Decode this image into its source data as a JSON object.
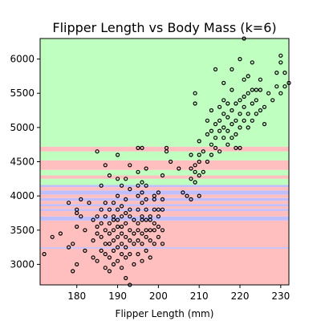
{
  "chart_data": {
    "type": "scatter",
    "title": "Flipper Length vs Body Mass (k=6)",
    "xlabel": "Flipper Length (mm)",
    "ylabel": "",
    "xlim": [
      171,
      232
    ],
    "ylim": [
      2700,
      6300
    ],
    "xticks": [
      180,
      190,
      200,
      210,
      220,
      230
    ],
    "yticks": [
      3000,
      3500,
      4000,
      4500,
      5000,
      5500,
      6000
    ],
    "grid": false,
    "legend": "none",
    "colors": {
      "region_pink": "#ffbfbf",
      "region_green": "#bfffbf",
      "region_blue": "#bfbfff",
      "point_stroke": "#000000",
      "point_fill": "none"
    },
    "regions": [
      {
        "y0": 2700,
        "y1": 3230,
        "class": "pink"
      },
      {
        "y0": 3230,
        "y1": 3250,
        "class": "blue"
      },
      {
        "y0": 3250,
        "y1": 3640,
        "class": "pink"
      },
      {
        "y0": 3640,
        "y1": 3700,
        "class": "blue"
      },
      {
        "y0": 3700,
        "y1": 3780,
        "class": "pink"
      },
      {
        "y0": 3780,
        "y1": 3810,
        "class": "blue"
      },
      {
        "y0": 3810,
        "y1": 3850,
        "class": "pink"
      },
      {
        "y0": 3850,
        "y1": 3880,
        "class": "blue"
      },
      {
        "y0": 3880,
        "y1": 3930,
        "class": "pink"
      },
      {
        "y0": 3930,
        "y1": 3970,
        "class": "blue"
      },
      {
        "y0": 3970,
        "y1": 4020,
        "class": "pink"
      },
      {
        "y0": 4020,
        "y1": 4080,
        "class": "blue"
      },
      {
        "y0": 4080,
        "y1": 4130,
        "class": "pink"
      },
      {
        "y0": 4130,
        "y1": 4160,
        "class": "blue"
      },
      {
        "y0": 4160,
        "y1": 4250,
        "class": "green"
      },
      {
        "y0": 4250,
        "y1": 4300,
        "class": "pink"
      },
      {
        "y0": 4300,
        "y1": 4380,
        "class": "green"
      },
      {
        "y0": 4380,
        "y1": 4520,
        "class": "pink"
      },
      {
        "y0": 4520,
        "y1": 4650,
        "class": "green"
      },
      {
        "y0": 4650,
        "y1": 4720,
        "class": "pink"
      },
      {
        "y0": 4720,
        "y1": 6300,
        "class": "green"
      }
    ],
    "points": [
      [
        172,
        3150
      ],
      [
        174,
        3400
      ],
      [
        176,
        3450
      ],
      [
        178,
        3250
      ],
      [
        178,
        3900
      ],
      [
        179,
        2900
      ],
      [
        179,
        3300
      ],
      [
        180,
        3000
      ],
      [
        180,
        3550
      ],
      [
        180,
        3750
      ],
      [
        180,
        3800
      ],
      [
        181,
        3700
      ],
      [
        181,
        3950
      ],
      [
        182,
        3200
      ],
      [
        182,
        3500
      ],
      [
        183,
        3900
      ],
      [
        184,
        3100
      ],
      [
        184,
        3350
      ],
      [
        184,
        3650
      ],
      [
        185,
        3050
      ],
      [
        185,
        3450
      ],
      [
        185,
        3550
      ],
      [
        185,
        3700
      ],
      [
        185,
        4650
      ],
      [
        186,
        3200
      ],
      [
        186,
        3400
      ],
      [
        186,
        3600
      ],
      [
        186,
        3800
      ],
      [
        186,
        4150
      ],
      [
        187,
        2950
      ],
      [
        187,
        3150
      ],
      [
        187,
        3300
      ],
      [
        187,
        3500
      ],
      [
        187,
        3700
      ],
      [
        187,
        3900
      ],
      [
        187,
        4450
      ],
      [
        188,
        2900
      ],
      [
        188,
        3100
      ],
      [
        188,
        3300
      ],
      [
        188,
        3450
      ],
      [
        188,
        3600
      ],
      [
        188,
        3800
      ],
      [
        188,
        4300
      ],
      [
        189,
        3000
      ],
      [
        189,
        3200
      ],
      [
        189,
        3350
      ],
      [
        189,
        3500
      ],
      [
        189,
        3650
      ],
      [
        189,
        3700
      ],
      [
        189,
        3900
      ],
      [
        190,
        3050
      ],
      [
        190,
        3250
      ],
      [
        190,
        3400
      ],
      [
        190,
        3550
      ],
      [
        190,
        3650
      ],
      [
        190,
        3800
      ],
      [
        190,
        4000
      ],
      [
        190,
        4250
      ],
      [
        190,
        4600
      ],
      [
        191,
        2950
      ],
      [
        191,
        3150
      ],
      [
        191,
        3300
      ],
      [
        191,
        3450
      ],
      [
        191,
        3550
      ],
      [
        191,
        3700
      ],
      [
        191,
        3850
      ],
      [
        191,
        4150
      ],
      [
        192,
        2800
      ],
      [
        192,
        3100
      ],
      [
        192,
        3250
      ],
      [
        192,
        3400
      ],
      [
        192,
        3600
      ],
      [
        192,
        3750
      ],
      [
        192,
        3950
      ],
      [
        192,
        4250
      ],
      [
        193,
        2700
      ],
      [
        193,
        3150
      ],
      [
        193,
        3350
      ],
      [
        193,
        3500
      ],
      [
        193,
        3700
      ],
      [
        193,
        3800
      ],
      [
        193,
        4100
      ],
      [
        193,
        4450
      ],
      [
        194,
        3000
      ],
      [
        194,
        3300
      ],
      [
        194,
        3450
      ],
      [
        194,
        3650
      ],
      [
        195,
        3150
      ],
      [
        195,
        3350
      ],
      [
        195,
        3500
      ],
      [
        195,
        3600
      ],
      [
        195,
        3800
      ],
      [
        195,
        4000
      ],
      [
        195,
        4150
      ],
      [
        195,
        4350
      ],
      [
        195,
        4700
      ],
      [
        196,
        3050
      ],
      [
        196,
        3300
      ],
      [
        196,
        3450
      ],
      [
        196,
        3650
      ],
      [
        196,
        3700
      ],
      [
        196,
        3900
      ],
      [
        196,
        4050
      ],
      [
        196,
        4200
      ],
      [
        196,
        4700
      ],
      [
        197,
        3200
      ],
      [
        197,
        3400
      ],
      [
        197,
        3500
      ],
      [
        197,
        3650
      ],
      [
        197,
        3800
      ],
      [
        197,
        3950
      ],
      [
        197,
        4150
      ],
      [
        197,
        4400
      ],
      [
        198,
        3100
      ],
      [
        198,
        3350
      ],
      [
        198,
        3500
      ],
      [
        198,
        3650
      ],
      [
        198,
        3700
      ],
      [
        199,
        3300
      ],
      [
        199,
        3500
      ],
      [
        199,
        3600
      ],
      [
        199,
        3800
      ],
      [
        199,
        3950
      ],
      [
        199,
        4000
      ],
      [
        200,
        3400
      ],
      [
        200,
        3550
      ],
      [
        200,
        3700
      ],
      [
        200,
        3800
      ],
      [
        200,
        4050
      ],
      [
        201,
        3300
      ],
      [
        201,
        3500
      ],
      [
        201,
        3800
      ],
      [
        201,
        3950
      ],
      [
        201,
        4300
      ],
      [
        202,
        4650
      ],
      [
        202,
        4700
      ],
      [
        203,
        4500
      ],
      [
        205,
        4400
      ],
      [
        206,
        4050
      ],
      [
        207,
        4000
      ],
      [
        208,
        3950
      ],
      [
        208,
        4250
      ],
      [
        208,
        4400
      ],
      [
        208,
        4600
      ],
      [
        209,
        4200
      ],
      [
        209,
        4350
      ],
      [
        209,
        4450
      ],
      [
        209,
        5350
      ],
      [
        209,
        5500
      ],
      [
        210,
        4000
      ],
      [
        210,
        4300
      ],
      [
        210,
        4500
      ],
      [
        210,
        4600
      ],
      [
        210,
        4800
      ],
      [
        211,
        4350
      ],
      [
        211,
        4650
      ],
      [
        212,
        4500
      ],
      [
        212,
        4900
      ],
      [
        212,
        5100
      ],
      [
        213,
        4600
      ],
      [
        213,
        4750
      ],
      [
        213,
        4950
      ],
      [
        213,
        5250
      ],
      [
        214,
        4700
      ],
      [
        214,
        4850
      ],
      [
        214,
        5050
      ],
      [
        214,
        5850
      ],
      [
        215,
        4650
      ],
      [
        215,
        4950
      ],
      [
        215,
        5100
      ],
      [
        215,
        5300
      ],
      [
        216,
        4850
      ],
      [
        216,
        5000
      ],
      [
        216,
        5200
      ],
      [
        216,
        5400
      ],
      [
        216,
        5650
      ],
      [
        217,
        4750
      ],
      [
        217,
        4950
      ],
      [
        217,
        5150
      ],
      [
        217,
        5350
      ],
      [
        218,
        4850
      ],
      [
        218,
        5050
      ],
      [
        218,
        5250
      ],
      [
        218,
        5550
      ],
      [
        218,
        5850
      ],
      [
        219,
        4700
      ],
      [
        219,
        4900
      ],
      [
        219,
        5100
      ],
      [
        219,
        5350
      ],
      [
        220,
        4700
      ],
      [
        220,
        5000
      ],
      [
        220,
        5200
      ],
      [
        220,
        5400
      ],
      [
        220,
        6000
      ],
      [
        221,
        5100
      ],
      [
        221,
        5300
      ],
      [
        221,
        5450
      ],
      [
        221,
        5700
      ],
      [
        221,
        6300
      ],
      [
        222,
        5000
      ],
      [
        222,
        5200
      ],
      [
        222,
        5500
      ],
      [
        222,
        5750
      ],
      [
        223,
        5100
      ],
      [
        223,
        5350
      ],
      [
        223,
        5550
      ],
      [
        223,
        5950
      ],
      [
        224,
        5200
      ],
      [
        224,
        5400
      ],
      [
        224,
        5550
      ],
      [
        225,
        5250
      ],
      [
        225,
        5550
      ],
      [
        225,
        5700
      ],
      [
        226,
        5050
      ],
      [
        226,
        5300
      ],
      [
        227,
        5500
      ],
      [
        228,
        5400
      ],
      [
        229,
        5600
      ],
      [
        229,
        5800
      ],
      [
        230,
        5500
      ],
      [
        230,
        5950
      ],
      [
        230,
        6050
      ],
      [
        231,
        5800
      ],
      [
        231,
        5600
      ],
      [
        232,
        5650
      ]
    ]
  }
}
